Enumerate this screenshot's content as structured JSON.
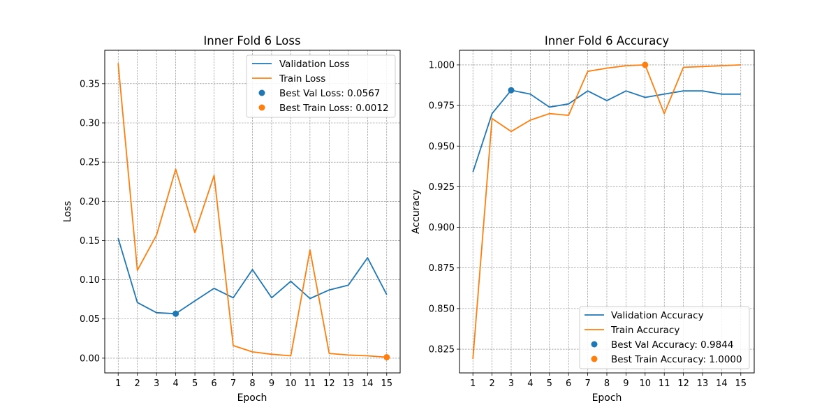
{
  "colors": {
    "validation": "#1f77b4",
    "train": "#ff7f0e"
  },
  "chart_data": [
    {
      "type": "line",
      "title": "Inner Fold 6 Loss",
      "xlabel": "Epoch",
      "ylabel": "Loss",
      "x": [
        1,
        2,
        3,
        4,
        5,
        6,
        7,
        8,
        9,
        10,
        11,
        12,
        13,
        14,
        15
      ],
      "xlim": [
        0.3,
        15.7
      ],
      "ylim": [
        -0.0188,
        0.3926
      ],
      "yticks": [
        0.0,
        0.05,
        0.1,
        0.15,
        0.2,
        0.25,
        0.3,
        0.35
      ],
      "ytick_labels": [
        "0.00",
        "0.05",
        "0.10",
        "0.15",
        "0.20",
        "0.25",
        "0.30",
        "0.35"
      ],
      "grid": true,
      "legend_position": "top-right",
      "series": [
        {
          "name": "Validation Loss",
          "color": "#1f77b4",
          "values": [
            0.153,
            0.071,
            0.058,
            0.0567,
            0.073,
            0.089,
            0.077,
            0.113,
            0.077,
            0.098,
            0.076,
            0.087,
            0.093,
            0.128,
            0.081
          ]
        },
        {
          "name": "Train Loss",
          "color": "#ff7f0e",
          "values": [
            0.376,
            0.112,
            0.157,
            0.241,
            0.16,
            0.233,
            0.016,
            0.008,
            0.005,
            0.003,
            0.138,
            0.006,
            0.004,
            0.003,
            0.0012
          ]
        }
      ],
      "markers": [
        {
          "name": "Best Val Loss: 0.0567",
          "color": "#1f77b4",
          "x": 4,
          "y": 0.0567
        },
        {
          "name": "Best Train Loss: 0.0012",
          "color": "#ff7f0e",
          "x": 15,
          "y": 0.0012
        }
      ]
    },
    {
      "type": "line",
      "title": "Inner Fold 6 Accuracy",
      "xlabel": "Epoch",
      "ylabel": "Accuracy",
      "x": [
        1,
        2,
        3,
        4,
        5,
        6,
        7,
        8,
        9,
        10,
        11,
        12,
        13,
        14,
        15
      ],
      "xlim": [
        0.3,
        15.7
      ],
      "ylim": [
        0.8104,
        1.009
      ],
      "yticks": [
        0.825,
        0.85,
        0.875,
        0.9,
        0.925,
        0.95,
        0.975,
        1.0
      ],
      "ytick_labels": [
        "0.825",
        "0.850",
        "0.875",
        "0.900",
        "0.925",
        "0.950",
        "0.975",
        "1.000"
      ],
      "grid": true,
      "legend_position": "bottom-right",
      "series": [
        {
          "name": "Validation Accuracy",
          "color": "#1f77b4",
          "values": [
            0.934,
            0.97,
            0.9844,
            0.982,
            0.974,
            0.976,
            0.984,
            0.978,
            0.984,
            0.98,
            0.982,
            0.984,
            0.984,
            0.982,
            0.982
          ]
        },
        {
          "name": "Train Accuracy",
          "color": "#ff7f0e",
          "values": [
            0.819,
            0.967,
            0.959,
            0.966,
            0.97,
            0.969,
            0.996,
            0.998,
            0.9995,
            1.0,
            0.97,
            0.9985,
            0.999,
            0.9995,
            1.0
          ]
        }
      ],
      "markers": [
        {
          "name": "Best Val Accuracy: 0.9844",
          "color": "#1f77b4",
          "x": 3,
          "y": 0.9844
        },
        {
          "name": "Best Train Accuracy: 1.0000",
          "color": "#ff7f0e",
          "x": 10,
          "y": 1.0
        }
      ]
    }
  ]
}
